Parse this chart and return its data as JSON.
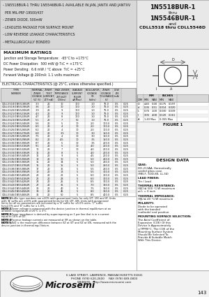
{
  "title_right_line1": "1N5518BUR-1",
  "title_right_line2": "thru",
  "title_right_line3": "1N5546BUR-1",
  "title_right_line4": "and",
  "title_right_line5": "CDLL5518 thru CDLL5546D",
  "bullets": [
    "- 1N5518BUR-1 THRU 1N5546BUR-1 AVAILABLE IN JAN, JANTX AND JANTXV",
    "  PER MIL-PRF-19500/437",
    "- ZENER DIODE, 500mW",
    "- LEADLESS PACKAGE FOR SURFACE MOUNT",
    "- LOW REVERSE LEAKAGE CHARACTERISTICS",
    "- METALLURGICALLY BONDED"
  ],
  "max_ratings_title": "MAXIMUM RATINGS",
  "max_ratings": [
    "Junction and Storage Temperature:  -65°C to +175°C",
    "DC Power Dissipation:  500 mW @ T₀C = +175°C",
    "Power Derating:  6.6 mW / °C above  T₀C = +25°C",
    "Forward Voltage @ 200mA: 1.1 volts maximum"
  ],
  "elec_char_title": "ELECTRICAL CHARACTERISTICS (@ 25°C, unless otherwise specified.)",
  "table_rows": [
    [
      "CDLL5518/1N5518BUR",
      "3.3",
      "20",
      "10",
      "100",
      "1.0",
      "75.0",
      "0.5",
      "0.25"
    ],
    [
      "CDLL5519/1N5519BUR",
      "3.6",
      "20",
      "10",
      "100",
      "1.0",
      "75.0",
      "0.5",
      "0.25"
    ],
    [
      "CDLL5520/1N5520BUR",
      "3.9",
      "20",
      "9",
      "100",
      "1.0",
      "75.0",
      "0.5",
      "0.25"
    ],
    [
      "CDLL5521/1N5521BUR",
      "4.3",
      "20",
      "9",
      "100",
      "1.0",
      "75.0",
      "0.5",
      "0.25"
    ],
    [
      "CDLL5522/1N5522BUR",
      "4.7",
      "20",
      "8",
      "100",
      "1.0",
      "75.0",
      "0.5",
      "0.25"
    ],
    [
      "CDLL5523/1N5523BUR",
      "5.1",
      "20",
      "7",
      "50",
      "1.0",
      "75.0",
      "0.5",
      "0.25"
    ],
    [
      "CDLL5524/1N5524BUR",
      "5.6",
      "20",
      "5",
      "10",
      "2.0",
      "100.0",
      "0.5",
      "0.25"
    ],
    [
      "CDLL5525/1N5525BUR",
      "6.0",
      "20",
      "4",
      "10",
      "2.0",
      "100.0",
      "0.5",
      "0.25"
    ],
    [
      "CDLL5526/1N5526BUR",
      "6.2",
      "20",
      "4",
      "10",
      "2.0",
      "100.0",
      "0.5",
      "0.25"
    ],
    [
      "CDLL5527/1N5527BUR",
      "6.8",
      "20",
      "3.5",
      "10",
      "3.0",
      "150.0",
      "0.5",
      "0.25"
    ],
    [
      "CDLL5528/1N5528BUR",
      "7.5",
      "20",
      "4",
      "10",
      "3.0",
      "150.0",
      "0.5",
      "0.25"
    ],
    [
      "CDLL5529/1N5529BUR",
      "8.2",
      "20",
      "4.5",
      "10",
      "3.5",
      "150.0",
      "0.5",
      "0.25"
    ],
    [
      "CDLL5530/1N5530BUR",
      "8.7",
      "20",
      "5",
      "10",
      "3.5",
      "200.0",
      "0.5",
      "0.25"
    ],
    [
      "CDLL5531/1N5531BUR",
      "9.1",
      "20",
      "5",
      "10",
      "4.0",
      "200.0",
      "0.5",
      "0.25"
    ],
    [
      "CDLL5532/1N5532BUR",
      "10",
      "20",
      "7",
      "10",
      "4.0",
      "200.0",
      "0.5",
      "0.25"
    ],
    [
      "CDLL5533/1N5533BUR",
      "11",
      "20",
      "8",
      "5",
      "4.0",
      "200.0",
      "0.5",
      "0.25"
    ],
    [
      "CDLL5534/1N5534BUR",
      "12",
      "20",
      "9",
      "5",
      "4.5",
      "200.0",
      "0.5",
      "0.25"
    ],
    [
      "CDLL5535/1N5535BUR",
      "13",
      "20",
      "10",
      "5",
      "5.0",
      "250.0",
      "0.5",
      "0.25"
    ],
    [
      "CDLL5536/1N5536BUR",
      "15",
      "20",
      "14",
      "5",
      "5.0",
      "250.0",
      "0.5",
      "0.25"
    ],
    [
      "CDLL5537/1N5537BUR",
      "16",
      "20",
      "15",
      "5",
      "5.0",
      "250.0",
      "0.5",
      "0.25"
    ],
    [
      "CDLL5538/1N5538BUR",
      "17",
      "20",
      "16",
      "5",
      "5.5",
      "250.0",
      "0.5",
      "0.25"
    ],
    [
      "CDLL5539/1N5539BUR",
      "18",
      "20",
      "18",
      "5",
      "5.5",
      "300.0",
      "0.5",
      "0.25"
    ],
    [
      "CDLL5540/1N5540BUR",
      "20",
      "20",
      "22",
      "5",
      "6.0",
      "300.0",
      "0.5",
      "0.25"
    ],
    [
      "CDLL5541/1N5541BUR",
      "22",
      "20",
      "23",
      "5",
      "6.0",
      "300.0",
      "0.5",
      "0.25"
    ],
    [
      "CDLL5542/1N5542BUR",
      "24",
      "20",
      "25",
      "5",
      "6.5",
      "300.0",
      "0.5",
      "0.25"
    ],
    [
      "CDLL5543/1N5543BUR",
      "27",
      "20",
      "35",
      "5",
      "7.0",
      "350.0",
      "0.5",
      "0.25"
    ],
    [
      "CDLL5544/1N5544BUR",
      "30",
      "20",
      "40",
      "5",
      "7.5",
      "350.0",
      "0.5",
      "0.25"
    ],
    [
      "CDLL5545/1N5545BUR",
      "33",
      "20",
      "45",
      "5",
      "8.0",
      "350.0",
      "0.5",
      "0.25"
    ],
    [
      "CDLL5546/1N5546BUR",
      "36",
      "20",
      "50",
      "5",
      "8.5",
      "400.0",
      "0.5",
      "0.25"
    ]
  ],
  "col_headers_line1": [
    "TYPE",
    "NOMINAL",
    "ZENER",
    "MAX ZENER IMPEDANCE",
    "LEAKAGE CURRENT",
    "REGULATOR",
    "ZENER",
    "LOW"
  ],
  "col_headers_line2": [
    "NUMBER",
    "ZENER",
    "TEST",
    "ZZT @ IZT",
    "IR @ VR",
    "VOLTAGE",
    "VOLTAGE",
    "IZK"
  ],
  "col_headers_line3": [
    "",
    "VOLTAGE",
    "CURRENT",
    "(Ohms Max)",
    "uA (Max)",
    "VR",
    "TOLERANCE",
    "(mA)"
  ],
  "col_headers_line4": [
    "",
    "VZ (V)",
    "IZT (mA)",
    "",
    "",
    "(Volts)",
    "(V)",
    ""
  ],
  "notes": [
    "NOTE 1   Suffix type numbers are ±20% with guaranteed limits for only IZT, IZK and VF. Units with 'A' suffix are ±10% with guaranteed limits for VZ, IZT, IZK. Units with guaranteed limits for all six parameters are indicated by a 'B' suffix for ±5.0% units, 'C' suffix for±2.0% and 'D' suffix for ± 1.0%.",
    "NOTE 2   Zener voltage is measured with the device junction in thermal equilibrium at an ambient temperature of 25°C ± 3°C.",
    "NOTE 3   Zener impedance is derived by superimposing on 1 per line that is in a current equal to 10% of IZT.",
    "NOTE 4   Reverse leakage currents are measured at VR as shown on the table.",
    "NOTE 5   ΔVZ is the maximum difference between VZ at IZT and VZ at IZK, measured with the device junction in thermal equilibrium."
  ],
  "design_data_title": "DESIGN DATA",
  "design_data": [
    [
      "CASE:",
      "DO-213AA, Hermetically sealed glass case. (MELF, SOD-80, LL-34)"
    ],
    [
      "LEAD FINISH:",
      "Tin / Lead"
    ],
    [
      "THERMAL RESISTANCE:",
      "(θJC)≤ 500 °C/W maximum at L = 0 inch"
    ],
    [
      "THERMAL IMPEDANCE:",
      "(θJL)≤ 40 °C/W maximum"
    ],
    [
      "POLARITY:",
      "Diode to be operated with the banded (cathode) end positive."
    ],
    [
      "MOUNTING SURFACE SELECTION:",
      "The Axial Coefficient of Expansion (COE) Of this Device Is Approximately ±7PPM/°C. The COE of the Mounting Surface System Should Be Selected To Provide A Suitable Match With This Device."
    ]
  ],
  "figure_caption": "FIGURE 1",
  "dim_table_header": [
    "DIM",
    "MM",
    "",
    "INCHES",
    ""
  ],
  "dim_table_sub": [
    "",
    "MIN",
    "MAX",
    "MIN",
    "MAX"
  ],
  "dim_rows": [
    [
      "D",
      "4.45",
      "5.00",
      "0.175",
      "0.197"
    ],
    [
      "d",
      "0.35",
      "0.51",
      "0.014",
      "0.020"
    ],
    [
      "L",
      "0.76",
      "1.00",
      "0.030",
      "0.039"
    ],
    [
      "l",
      "3.05",
      "4.08",
      "0.120",
      "0.161"
    ],
    [
      "A",
      "1.40 Max",
      "",
      "0.055 Max",
      ""
    ]
  ],
  "company": "Microsemi",
  "address": "6 LAKE STREET, LAWRENCE, MASSACHUSETTS 01841",
  "phone": "PHONE (978) 620-2600",
  "fax": "FAX (978) 689-0803",
  "website": "WEBSITE:  http://www.microsemi.com",
  "page_num": "143",
  "bg_gray": "#d8d8d8",
  "mid_gray": "#e8e8e8",
  "lt_gray": "#f2f2f2",
  "white": "#ffffff",
  "blk": "#111111"
}
